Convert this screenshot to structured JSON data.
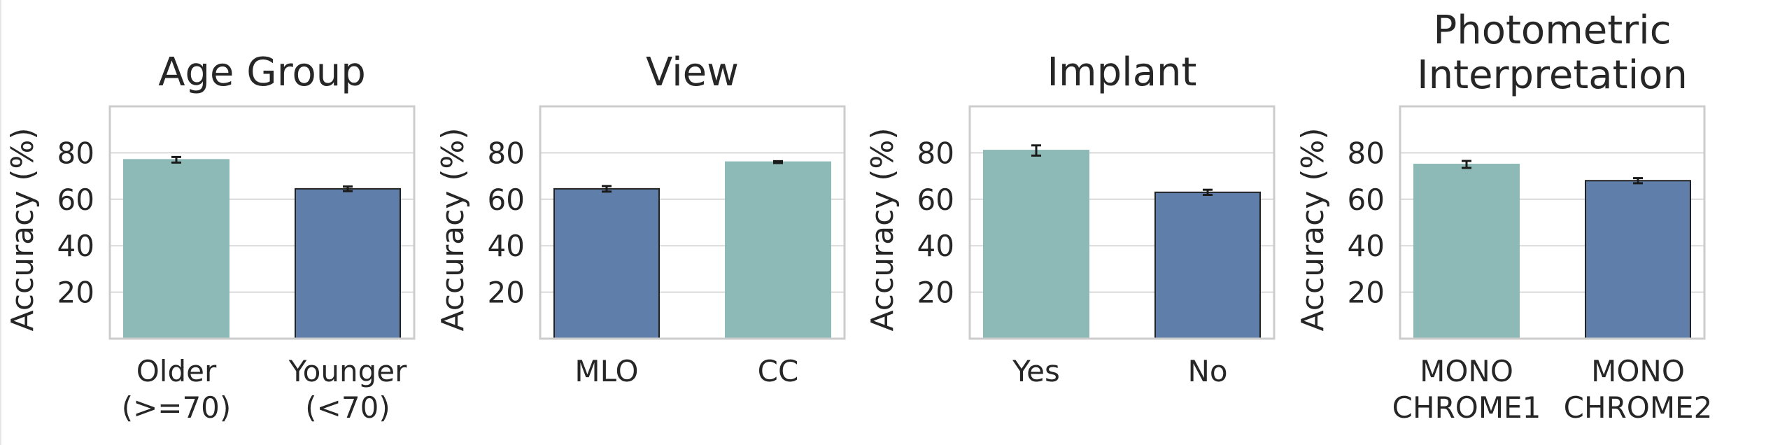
{
  "colors": {
    "teal": "#8db9b6",
    "blue": "#5f7faa",
    "edge_dark": "#222222",
    "edge_teal": "#8db9b6"
  },
  "chart_data": [
    {
      "type": "bar",
      "title": [
        "Age Group"
      ],
      "ylabel": "Accuracy (%)",
      "ylim": [
        0,
        100
      ],
      "yticks": [
        20,
        40,
        60,
        80
      ],
      "grid": true,
      "categories": [
        [
          "Older",
          "(>=70)"
        ],
        [
          "Younger",
          "(<70)"
        ]
      ],
      "values": [
        77,
        64.5
      ],
      "errors": [
        1.2,
        1.0
      ],
      "bar_colors": [
        "teal",
        "blue"
      ]
    },
    {
      "type": "bar",
      "title": [
        "View"
      ],
      "ylabel": "Accuracy (%)",
      "ylim": [
        0,
        100
      ],
      "yticks": [
        20,
        40,
        60,
        80
      ],
      "grid": true,
      "categories": [
        [
          "MLO"
        ],
        [
          "CC"
        ]
      ],
      "values": [
        64.5,
        76
      ],
      "errors": [
        1.2,
        0.4
      ],
      "bar_colors": [
        "blue",
        "teal"
      ]
    },
    {
      "type": "bar",
      "title": [
        "Implant"
      ],
      "ylabel": "Accuracy (%)",
      "ylim": [
        0,
        100
      ],
      "yticks": [
        20,
        40,
        60,
        80
      ],
      "grid": true,
      "categories": [
        [
          "Yes"
        ],
        [
          "No"
        ]
      ],
      "values": [
        81,
        63
      ],
      "errors": [
        2.2,
        1.1
      ],
      "bar_colors": [
        "teal",
        "blue"
      ]
    },
    {
      "type": "bar",
      "title": [
        "Photometric",
        "Interpretation"
      ],
      "ylabel": "Accuracy (%)",
      "ylim": [
        0,
        100
      ],
      "yticks": [
        20,
        40,
        60,
        80
      ],
      "grid": true,
      "categories": [
        [
          "MONO",
          "CHROME1"
        ],
        [
          "MONO",
          "CHROME2"
        ]
      ],
      "values": [
        75,
        68
      ],
      "errors": [
        1.5,
        1.1
      ],
      "bar_colors": [
        "teal",
        "blue"
      ]
    }
  ]
}
